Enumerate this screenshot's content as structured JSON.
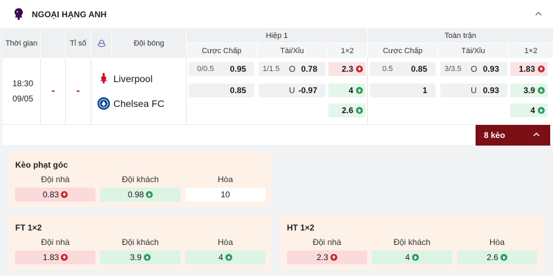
{
  "league": {
    "name": "NGOẠI HẠNG ANH",
    "logo_icon": "premier-league-lion-icon",
    "collapse_icon": "chevron-up-icon"
  },
  "table": {
    "headers": {
      "time": "Thời gian",
      "score": "Tỉ số",
      "stats_icon": "stadium-icon",
      "team": "Đội bóng",
      "first_half": "Hiệp 1",
      "full_time": "Toàn trận",
      "handicap": "Cược Chấp",
      "over_under": "Tài/Xỉu",
      "one_x_two": "1×2"
    },
    "match": {
      "time": "18:30",
      "date": "09/05",
      "score_home": "-",
      "score_away": "-",
      "home_team": "Liverpool",
      "away_team": "Chelsea FC",
      "home_logo": "liverpool-crest-icon",
      "away_logo": "chelsea-crest-icon"
    },
    "first_half": {
      "handicap": [
        {
          "line": "0/0.5",
          "value": "0.95"
        },
        {
          "line": "",
          "value": "0.85"
        }
      ],
      "over_under": [
        {
          "line": "1/1.5",
          "side": "O",
          "value": "0.78"
        },
        {
          "line": "",
          "side": "U",
          "value": "-0.97"
        }
      ],
      "one_x_two": [
        {
          "value": "2.3",
          "trend": "down"
        },
        {
          "value": "4",
          "trend": "up"
        },
        {
          "value": "2.6",
          "trend": "up"
        }
      ]
    },
    "full_time": {
      "handicap": [
        {
          "line": "0.5",
          "value": "0.85"
        },
        {
          "line": "",
          "value": "1"
        }
      ],
      "over_under": [
        {
          "line": "3/3.5",
          "side": "O",
          "value": "0.93"
        },
        {
          "line": "",
          "side": "U",
          "value": "0.93"
        }
      ],
      "one_x_two": [
        {
          "value": "1.83",
          "trend": "down"
        },
        {
          "value": "3.9",
          "trend": "up"
        },
        {
          "value": "4",
          "trend": "up"
        }
      ]
    }
  },
  "more": {
    "label": "8 kèo",
    "icon": "chevron-up-icon"
  },
  "cards": {
    "corners": {
      "title": "Kèo phạt góc",
      "headers": [
        "Đội nhà",
        "Đội khách",
        "Hòa"
      ],
      "values": [
        {
          "value": "0.83",
          "trend": "down"
        },
        {
          "value": "0.98",
          "trend": "up"
        },
        {
          "value": "10",
          "trend": "none"
        }
      ]
    },
    "ft": {
      "title": "FT 1×2",
      "headers": [
        "Đội nhà",
        "Đội khách",
        "Hòa"
      ],
      "values": [
        {
          "value": "1.83",
          "trend": "down"
        },
        {
          "value": "3.9",
          "trend": "up"
        },
        {
          "value": "4",
          "trend": "up"
        }
      ]
    },
    "ht": {
      "title": "HT 1×2",
      "headers": [
        "Đội nhà",
        "Đội khách",
        "Hòa"
      ],
      "values": [
        {
          "value": "2.3",
          "trend": "down"
        },
        {
          "value": "4",
          "trend": "up"
        },
        {
          "value": "2.6",
          "trend": "up"
        }
      ]
    }
  },
  "colors": {
    "accent_dark_red": "#7a1016",
    "down_bg": "#fbe3e4",
    "up_bg": "#e3f6ea",
    "down_arrow": "#c3282e",
    "up_arrow": "#2d9a5b",
    "card_bg": "#fdf1e8"
  }
}
